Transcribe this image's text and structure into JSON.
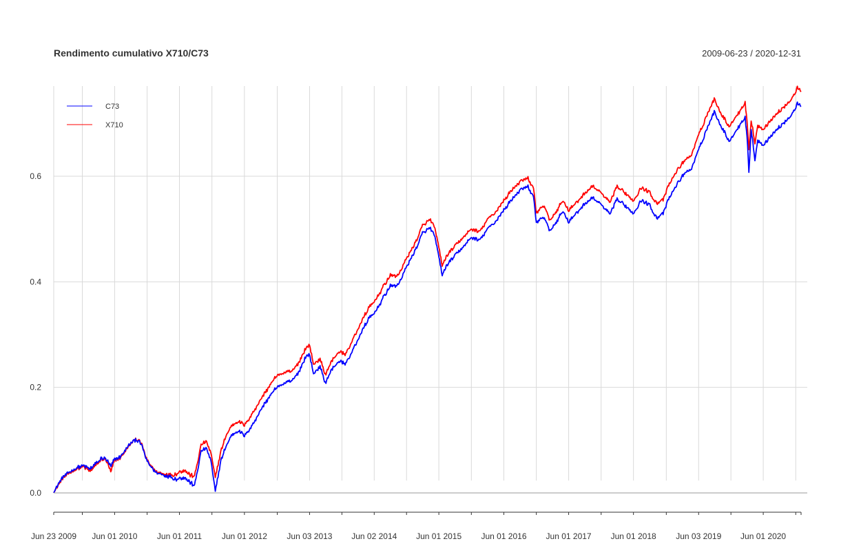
{
  "chart_data": {
    "type": "line",
    "title": "Rendimento cumulativo X710/C73",
    "date_range": "2009-06-23 / 2020-12-31",
    "xlabel": "",
    "ylabel": "",
    "ylim": [
      -0.03,
      0.77
    ],
    "y_ticks": [
      0.0,
      0.2,
      0.4,
      0.6
    ],
    "y_tick_labels": [
      "0.0",
      "0.2",
      "0.4",
      "0.6"
    ],
    "x_range": [
      "2009-06-23",
      "2020-12-31"
    ],
    "x_ticks": [
      {
        "date": "2009-06-23",
        "label": "Jun 23 2009"
      },
      {
        "date": "2010-06-01",
        "label": "Jun 01 2010"
      },
      {
        "date": "2011-06-01",
        "label": "Jun 01 2011"
      },
      {
        "date": "2012-06-01",
        "label": "Jun 01 2012"
      },
      {
        "date": "2013-06-03",
        "label": "Jun 03 2013"
      },
      {
        "date": "2014-06-02",
        "label": "Jun 02 2014"
      },
      {
        "date": "2015-06-01",
        "label": "Jun 01 2015"
      },
      {
        "date": "2016-06-01",
        "label": "Jun 01 2016"
      },
      {
        "date": "2017-06-01",
        "label": "Jun 01 2017"
      },
      {
        "date": "2018-06-01",
        "label": "Jun 01 2018"
      },
      {
        "date": "2019-06-03",
        "label": "Jun 03 2019"
      },
      {
        "date": "2020-06-01",
        "label": "Jun 01 2020"
      }
    ],
    "x_minor_ticks": [
      "2009-12-01",
      "2010-12-01",
      "2011-12-01",
      "2012-12-03",
      "2013-12-02",
      "2014-12-01",
      "2015-12-01",
      "2016-12-01",
      "2017-12-01",
      "2018-12-03",
      "2019-12-02",
      "2020-12-01"
    ],
    "grid": true,
    "legend_position": "top-left",
    "series": [
      {
        "name": "C73",
        "color": "#0000FF",
        "points": [
          [
            "2009-06-23",
            0.0
          ],
          [
            "2009-07-20",
            0.018
          ],
          [
            "2009-08-20",
            0.032
          ],
          [
            "2009-09-25",
            0.04
          ],
          [
            "2009-11-01",
            0.048
          ],
          [
            "2009-12-01",
            0.052
          ],
          [
            "2010-01-15",
            0.046
          ],
          [
            "2010-02-15",
            0.055
          ],
          [
            "2010-03-20",
            0.066
          ],
          [
            "2010-04-15",
            0.064
          ],
          [
            "2010-05-10",
            0.05
          ],
          [
            "2010-06-01",
            0.064
          ],
          [
            "2010-07-01",
            0.068
          ],
          [
            "2010-08-01",
            0.082
          ],
          [
            "2010-09-01",
            0.094
          ],
          [
            "2010-10-01",
            0.102
          ],
          [
            "2010-11-01",
            0.09
          ],
          [
            "2010-12-01",
            0.06
          ],
          [
            "2011-01-15",
            0.04
          ],
          [
            "2011-03-01",
            0.034
          ],
          [
            "2011-04-15",
            0.03
          ],
          [
            "2011-05-15",
            0.026
          ],
          [
            "2011-06-01",
            0.028
          ],
          [
            "2011-07-01",
            0.03
          ],
          [
            "2011-08-01",
            0.02
          ],
          [
            "2011-08-25",
            0.012
          ],
          [
            "2011-10-01",
            0.078
          ],
          [
            "2011-11-01",
            0.085
          ],
          [
            "2011-11-25",
            0.06
          ],
          [
            "2011-12-20",
            0.004
          ],
          [
            "2012-01-20",
            0.06
          ],
          [
            "2012-02-20",
            0.09
          ],
          [
            "2012-03-20",
            0.11
          ],
          [
            "2012-05-01",
            0.118
          ],
          [
            "2012-06-01",
            0.108
          ],
          [
            "2012-07-15",
            0.128
          ],
          [
            "2012-09-01",
            0.158
          ],
          [
            "2012-10-15",
            0.18
          ],
          [
            "2012-12-01",
            0.2
          ],
          [
            "2013-01-15",
            0.208
          ],
          [
            "2013-02-25",
            0.212
          ],
          [
            "2013-04-01",
            0.228
          ],
          [
            "2013-05-15",
            0.26
          ],
          [
            "2013-06-03",
            0.262
          ],
          [
            "2013-06-25",
            0.226
          ],
          [
            "2013-08-01",
            0.24
          ],
          [
            "2013-08-30",
            0.208
          ],
          [
            "2013-10-01",
            0.232
          ],
          [
            "2013-11-15",
            0.25
          ],
          [
            "2013-12-20",
            0.244
          ],
          [
            "2014-02-01",
            0.27
          ],
          [
            "2014-03-15",
            0.3
          ],
          [
            "2014-05-01",
            0.33
          ],
          [
            "2014-06-02",
            0.34
          ],
          [
            "2014-07-15",
            0.365
          ],
          [
            "2014-09-01",
            0.392
          ],
          [
            "2014-10-15",
            0.394
          ],
          [
            "2014-12-01",
            0.428
          ],
          [
            "2015-01-20",
            0.46
          ],
          [
            "2015-03-01",
            0.492
          ],
          [
            "2015-04-15",
            0.502
          ],
          [
            "2015-05-10",
            0.484
          ],
          [
            "2015-06-01",
            0.448
          ],
          [
            "2015-06-20",
            0.412
          ],
          [
            "2015-07-20",
            0.434
          ],
          [
            "2015-09-01",
            0.45
          ],
          [
            "2015-10-15",
            0.466
          ],
          [
            "2015-12-01",
            0.484
          ],
          [
            "2016-01-15",
            0.478
          ],
          [
            "2016-03-01",
            0.5
          ],
          [
            "2016-04-15",
            0.514
          ],
          [
            "2016-06-01",
            0.536
          ],
          [
            "2016-07-15",
            0.556
          ],
          [
            "2016-09-01",
            0.574
          ],
          [
            "2016-10-15",
            0.58
          ],
          [
            "2016-11-15",
            0.56
          ],
          [
            "2016-12-01",
            0.514
          ],
          [
            "2017-01-15",
            0.522
          ],
          [
            "2017-02-15",
            0.496
          ],
          [
            "2017-03-20",
            0.512
          ],
          [
            "2017-05-01",
            0.534
          ],
          [
            "2017-06-01",
            0.514
          ],
          [
            "2017-07-15",
            0.53
          ],
          [
            "2017-09-01",
            0.548
          ],
          [
            "2017-10-15",
            0.56
          ],
          [
            "2017-12-01",
            0.546
          ],
          [
            "2018-01-20",
            0.528
          ],
          [
            "2018-03-01",
            0.556
          ],
          [
            "2018-04-15",
            0.544
          ],
          [
            "2018-06-01",
            0.53
          ],
          [
            "2018-07-15",
            0.554
          ],
          [
            "2018-09-01",
            0.546
          ],
          [
            "2018-10-10",
            0.52
          ],
          [
            "2018-11-15",
            0.53
          ],
          [
            "2018-12-20",
            0.56
          ],
          [
            "2019-02-01",
            0.584
          ],
          [
            "2019-03-15",
            0.606
          ],
          [
            "2019-04-20",
            0.612
          ],
          [
            "2019-06-03",
            0.65
          ],
          [
            "2019-07-20",
            0.69
          ],
          [
            "2019-08-30",
            0.722
          ],
          [
            "2019-10-15",
            0.69
          ],
          [
            "2019-11-25",
            0.666
          ],
          [
            "2019-12-20",
            0.68
          ],
          [
            "2020-01-25",
            0.7
          ],
          [
            "2020-02-20",
            0.712
          ],
          [
            "2020-03-05",
            0.66
          ],
          [
            "2020-03-12",
            0.605
          ],
          [
            "2020-03-25",
            0.69
          ],
          [
            "2020-04-15",
            0.632
          ],
          [
            "2020-05-01",
            0.668
          ],
          [
            "2020-06-01",
            0.66
          ],
          [
            "2020-07-15",
            0.676
          ],
          [
            "2020-09-01",
            0.694
          ],
          [
            "2020-10-15",
            0.708
          ],
          [
            "2020-11-20",
            0.722
          ],
          [
            "2020-12-10",
            0.738
          ],
          [
            "2020-12-31",
            0.732
          ]
        ]
      },
      {
        "name": "X710",
        "color": "#FF0000",
        "points": [
          [
            "2009-06-23",
            0.0
          ],
          [
            "2009-07-20",
            0.016
          ],
          [
            "2009-08-20",
            0.03
          ],
          [
            "2009-09-25",
            0.038
          ],
          [
            "2009-11-01",
            0.046
          ],
          [
            "2009-12-01",
            0.05
          ],
          [
            "2010-01-15",
            0.042
          ],
          [
            "2010-02-15",
            0.052
          ],
          [
            "2010-03-20",
            0.064
          ],
          [
            "2010-04-15",
            0.062
          ],
          [
            "2010-05-10",
            0.04
          ],
          [
            "2010-06-01",
            0.062
          ],
          [
            "2010-07-01",
            0.066
          ],
          [
            "2010-08-01",
            0.08
          ],
          [
            "2010-09-01",
            0.093
          ],
          [
            "2010-10-01",
            0.103
          ],
          [
            "2010-11-01",
            0.092
          ],
          [
            "2010-12-01",
            0.062
          ],
          [
            "2011-01-15",
            0.042
          ],
          [
            "2011-03-01",
            0.036
          ],
          [
            "2011-04-15",
            0.034
          ],
          [
            "2011-05-15",
            0.036
          ],
          [
            "2011-06-01",
            0.04
          ],
          [
            "2011-07-01",
            0.044
          ],
          [
            "2011-08-01",
            0.034
          ],
          [
            "2011-08-25",
            0.03
          ],
          [
            "2011-10-01",
            0.09
          ],
          [
            "2011-11-01",
            0.098
          ],
          [
            "2011-11-25",
            0.074
          ],
          [
            "2011-12-20",
            0.03
          ],
          [
            "2012-01-20",
            0.078
          ],
          [
            "2012-02-20",
            0.11
          ],
          [
            "2012-03-20",
            0.128
          ],
          [
            "2012-05-01",
            0.136
          ],
          [
            "2012-06-01",
            0.128
          ],
          [
            "2012-07-15",
            0.15
          ],
          [
            "2012-09-01",
            0.178
          ],
          [
            "2012-10-15",
            0.2
          ],
          [
            "2012-12-01",
            0.222
          ],
          [
            "2013-01-15",
            0.228
          ],
          [
            "2013-02-25",
            0.23
          ],
          [
            "2013-04-01",
            0.246
          ],
          [
            "2013-05-15",
            0.276
          ],
          [
            "2013-06-03",
            0.28
          ],
          [
            "2013-06-25",
            0.244
          ],
          [
            "2013-08-01",
            0.254
          ],
          [
            "2013-08-30",
            0.224
          ],
          [
            "2013-10-01",
            0.248
          ],
          [
            "2013-11-15",
            0.268
          ],
          [
            "2013-12-20",
            0.262
          ],
          [
            "2014-02-01",
            0.29
          ],
          [
            "2014-03-15",
            0.32
          ],
          [
            "2014-05-01",
            0.35
          ],
          [
            "2014-06-02",
            0.362
          ],
          [
            "2014-07-15",
            0.386
          ],
          [
            "2014-09-01",
            0.412
          ],
          [
            "2014-10-15",
            0.412
          ],
          [
            "2014-12-01",
            0.444
          ],
          [
            "2015-01-20",
            0.474
          ],
          [
            "2015-03-01",
            0.506
          ],
          [
            "2015-04-15",
            0.518
          ],
          [
            "2015-05-10",
            0.5
          ],
          [
            "2015-06-01",
            0.466
          ],
          [
            "2015-06-20",
            0.43
          ],
          [
            "2015-07-20",
            0.452
          ],
          [
            "2015-09-01",
            0.468
          ],
          [
            "2015-10-15",
            0.484
          ],
          [
            "2015-12-01",
            0.5
          ],
          [
            "2016-01-15",
            0.494
          ],
          [
            "2016-03-01",
            0.518
          ],
          [
            "2016-04-15",
            0.532
          ],
          [
            "2016-06-01",
            0.554
          ],
          [
            "2016-07-15",
            0.574
          ],
          [
            "2016-09-01",
            0.59
          ],
          [
            "2016-10-15",
            0.596
          ],
          [
            "2016-11-15",
            0.576
          ],
          [
            "2016-12-01",
            0.532
          ],
          [
            "2017-01-15",
            0.544
          ],
          [
            "2017-02-15",
            0.516
          ],
          [
            "2017-03-20",
            0.532
          ],
          [
            "2017-05-01",
            0.554
          ],
          [
            "2017-06-01",
            0.536
          ],
          [
            "2017-07-15",
            0.55
          ],
          [
            "2017-09-01",
            0.568
          ],
          [
            "2017-10-15",
            0.582
          ],
          [
            "2017-12-01",
            0.568
          ],
          [
            "2018-01-20",
            0.55
          ],
          [
            "2018-03-01",
            0.58
          ],
          [
            "2018-04-15",
            0.568
          ],
          [
            "2018-06-01",
            0.554
          ],
          [
            "2018-07-15",
            0.578
          ],
          [
            "2018-09-01",
            0.57
          ],
          [
            "2018-10-10",
            0.548
          ],
          [
            "2018-11-15",
            0.556
          ],
          [
            "2018-12-20",
            0.586
          ],
          [
            "2019-02-01",
            0.61
          ],
          [
            "2019-03-15",
            0.63
          ],
          [
            "2019-04-20",
            0.638
          ],
          [
            "2019-06-03",
            0.678
          ],
          [
            "2019-07-20",
            0.716
          ],
          [
            "2019-08-30",
            0.746
          ],
          [
            "2019-10-15",
            0.714
          ],
          [
            "2019-11-25",
            0.694
          ],
          [
            "2019-12-20",
            0.708
          ],
          [
            "2020-01-25",
            0.726
          ],
          [
            "2020-02-20",
            0.74
          ],
          [
            "2020-03-05",
            0.69
          ],
          [
            "2020-03-12",
            0.648
          ],
          [
            "2020-03-25",
            0.706
          ],
          [
            "2020-04-15",
            0.664
          ],
          [
            "2020-05-01",
            0.696
          ],
          [
            "2020-06-01",
            0.69
          ],
          [
            "2020-07-15",
            0.706
          ],
          [
            "2020-09-01",
            0.724
          ],
          [
            "2020-10-15",
            0.738
          ],
          [
            "2020-11-20",
            0.752
          ],
          [
            "2020-12-10",
            0.768
          ],
          [
            "2020-12-31",
            0.76
          ]
        ]
      }
    ]
  }
}
